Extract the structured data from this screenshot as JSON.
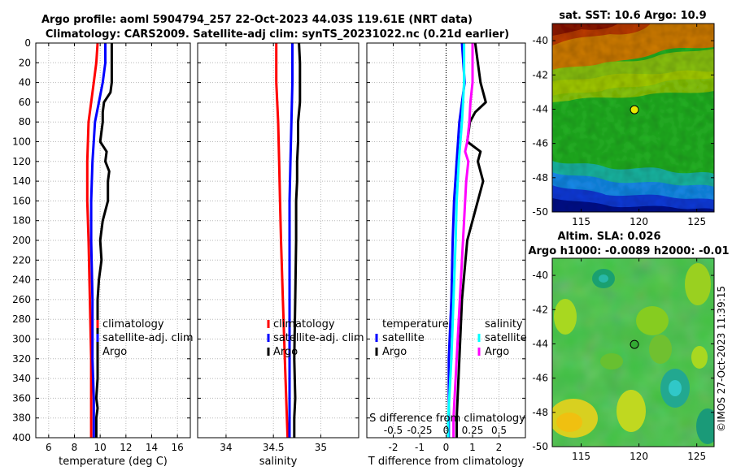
{
  "figure": {
    "title_line1": "Argo profile: aoml 5904794_257 22-Oct-2023 44.03S 119.61E (NRT data)",
    "title_line2": "Climatology: CARS2009. Satellite-adj clim: synTS_20231022.nc (0.21d earlier)",
    "stamp": "©IMOS 27-Oct-2023 11:39:15"
  },
  "chart_data": [
    {
      "id": "temperature",
      "type": "line",
      "xlabel": "temperature (deg C)",
      "ylabel": "",
      "xlim": [
        5,
        17
      ],
      "ylim": [
        400,
        0
      ],
      "xticks": [
        "6",
        "8",
        "10",
        "12",
        "14",
        "16"
      ],
      "xtick_values": [
        6,
        8,
        10,
        12,
        14,
        16
      ],
      "yticks": [
        "0",
        "20",
        "40",
        "60",
        "80",
        "100",
        "120",
        "140",
        "160",
        "180",
        "200",
        "220",
        "240",
        "260",
        "280",
        "300",
        "320",
        "340",
        "360",
        "380",
        "400"
      ],
      "ytick_values": [
        0,
        20,
        40,
        60,
        80,
        100,
        120,
        140,
        160,
        180,
        200,
        220,
        240,
        260,
        280,
        300,
        320,
        340,
        360,
        380,
        400
      ],
      "grid": true,
      "legend": [
        "climatology",
        "satellite-adj. clim",
        "Argo"
      ],
      "legend_position": "bottom-right",
      "series": [
        {
          "name": "climatology",
          "color": "#ff0000",
          "depth": [
            0,
            20,
            40,
            60,
            80,
            120,
            160,
            200,
            260,
            320,
            400
          ],
          "values": [
            9.8,
            9.7,
            9.5,
            9.3,
            9.1,
            9.0,
            9.0,
            9.1,
            9.2,
            9.3,
            9.3
          ]
        },
        {
          "name": "satellite-adj. clim",
          "color": "#0000ff",
          "depth": [
            0,
            20,
            40,
            60,
            80,
            120,
            160,
            200,
            260,
            320,
            360,
            400
          ],
          "values": [
            10.4,
            10.4,
            10.2,
            9.9,
            9.6,
            9.4,
            9.3,
            9.3,
            9.4,
            9.4,
            9.5,
            9.5
          ]
        },
        {
          "name": "Argo",
          "color": "#000000",
          "depth": [
            0,
            20,
            40,
            50,
            60,
            70,
            80,
            100,
            110,
            120,
            130,
            140,
            160,
            180,
            200,
            220,
            240,
            260,
            280,
            300,
            320,
            340,
            360,
            370,
            380,
            400
          ],
          "values": [
            10.9,
            10.9,
            10.9,
            10.8,
            10.3,
            10.2,
            10.2,
            10.0,
            10.5,
            10.4,
            10.7,
            10.6,
            10.6,
            10.2,
            10.0,
            10.1,
            9.9,
            9.8,
            9.8,
            9.8,
            9.8,
            9.8,
            9.7,
            9.8,
            9.7,
            9.7
          ]
        }
      ]
    },
    {
      "id": "salinity",
      "type": "line",
      "xlabel": "salinity",
      "ylabel": "",
      "xlim": [
        33.7,
        35.4
      ],
      "ylim": [
        400,
        0
      ],
      "xticks": [
        "34",
        "34.5",
        "35"
      ],
      "xtick_values": [
        34,
        34.5,
        35
      ],
      "grid": true,
      "legend": [
        "climatology",
        "satellite-adj. clim",
        "Argo"
      ],
      "legend_position": "bottom-right",
      "series": [
        {
          "name": "climatology",
          "color": "#ff0000",
          "depth": [
            0,
            40,
            80,
            120,
            160,
            200,
            260,
            320,
            400
          ],
          "values": [
            34.53,
            34.53,
            34.55,
            34.56,
            34.57,
            34.58,
            34.6,
            34.62,
            34.65
          ]
        },
        {
          "name": "satellite-adj. clim",
          "color": "#0000ff",
          "depth": [
            0,
            40,
            80,
            120,
            160,
            200,
            260,
            320,
            400
          ],
          "values": [
            34.7,
            34.7,
            34.69,
            34.68,
            34.67,
            34.67,
            34.67,
            34.67,
            34.67
          ]
        },
        {
          "name": "Argo",
          "color": "#000000",
          "depth": [
            0,
            20,
            40,
            60,
            80,
            100,
            120,
            140,
            160,
            200,
            260,
            320,
            360,
            380,
            400
          ],
          "values": [
            34.77,
            34.78,
            34.78,
            34.78,
            34.76,
            34.76,
            34.75,
            34.75,
            34.74,
            34.74,
            34.73,
            34.72,
            34.73,
            34.72,
            34.72
          ]
        }
      ]
    },
    {
      "id": "difference",
      "type": "line",
      "xlabel": "T difference from climatology",
      "xlabel_top": "S difference from climatology",
      "ylabel": "",
      "xlim": [
        -3,
        3
      ],
      "ylim": [
        400,
        0
      ],
      "xticks": [
        "-2",
        "-1",
        "0",
        "1",
        "2"
      ],
      "xtick_values": [
        -2,
        -1,
        0,
        1,
        2
      ],
      "s_ticks": [
        "-0.5",
        "-0.25",
        "0",
        "0.25",
        "0.5"
      ],
      "s_tick_values": [
        -0.5,
        -0.25,
        0,
        0.25,
        0.5
      ],
      "grid": true,
      "legend_t_header": "temperature",
      "legend_s_header": "salinity",
      "legend_t": [
        "satellite",
        "Argo"
      ],
      "legend_s": [
        "satellite",
        "Argo"
      ],
      "legend_position": "bottom",
      "series": [
        {
          "name": "T satellite",
          "color": "#0000ff",
          "depth": [
            0,
            40,
            80,
            120,
            160,
            200,
            260,
            320,
            380,
            400
          ],
          "values": [
            0.6,
            0.7,
            0.5,
            0.4,
            0.3,
            0.25,
            0.2,
            0.1,
            0.1,
            0.1
          ]
        },
        {
          "name": "T Argo",
          "color": "#000000",
          "depth": [
            0,
            20,
            40,
            60,
            70,
            80,
            100,
            110,
            120,
            140,
            160,
            200,
            260,
            320,
            380,
            400
          ],
          "values": [
            1.1,
            1.2,
            1.3,
            1.5,
            1.1,
            0.9,
            0.8,
            1.3,
            1.2,
            1.4,
            1.2,
            0.8,
            0.6,
            0.5,
            0.4,
            0.4
          ]
        },
        {
          "name": "S satellite",
          "color": "#00ffff",
          "depth": [
            0,
            40,
            80,
            120,
            160,
            200,
            260,
            320,
            380,
            400
          ],
          "values": [
            0.17,
            0.17,
            0.15,
            0.12,
            0.1,
            0.09,
            0.07,
            0.05,
            0.02,
            0.02
          ]
        },
        {
          "name": "S Argo",
          "color": "#ff00ff",
          "depth": [
            0,
            20,
            40,
            60,
            80,
            100,
            110,
            120,
            140,
            160,
            200,
            260,
            320,
            380,
            400
          ],
          "values": [
            0.25,
            0.25,
            0.25,
            0.23,
            0.22,
            0.2,
            0.18,
            0.21,
            0.19,
            0.18,
            0.16,
            0.13,
            0.1,
            0.07,
            0.07
          ]
        }
      ]
    },
    {
      "id": "sst_map",
      "type": "heatmap",
      "title": "sat. SST: 10.6 Argo: 10.9",
      "xlim": [
        112.5,
        126.5
      ],
      "ylim": [
        -50,
        -39
      ],
      "xticks": [
        "115",
        "120",
        "125"
      ],
      "xtick_values": [
        115,
        120,
        125
      ],
      "yticks": [
        "-40",
        "-42",
        "-44",
        "-46",
        "-48",
        "-50"
      ],
      "ytick_values": [
        -40,
        -42,
        -44,
        -46,
        -48,
        -50
      ],
      "marker": {
        "lon": 119.61,
        "lat": -44.03,
        "color": "#e8e800"
      }
    },
    {
      "id": "sla_map",
      "type": "heatmap",
      "title_line1": "Altim. SLA: 0.026",
      "title_line2": "Argo h1000: -0.0089 h2000: -0.01",
      "xlim": [
        112.5,
        126.5
      ],
      "ylim": [
        -50,
        -39
      ],
      "xticks": [
        "115",
        "120",
        "125"
      ],
      "xtick_values": [
        115,
        120,
        125
      ],
      "yticks": [
        "-40",
        "-42",
        "-44",
        "-46",
        "-48",
        "-50"
      ],
      "ytick_values": [
        -40,
        -42,
        -44,
        -46,
        -48,
        -50
      ],
      "marker": {
        "lon": 119.61,
        "lat": -44.03,
        "color": "#33aa33"
      }
    }
  ]
}
